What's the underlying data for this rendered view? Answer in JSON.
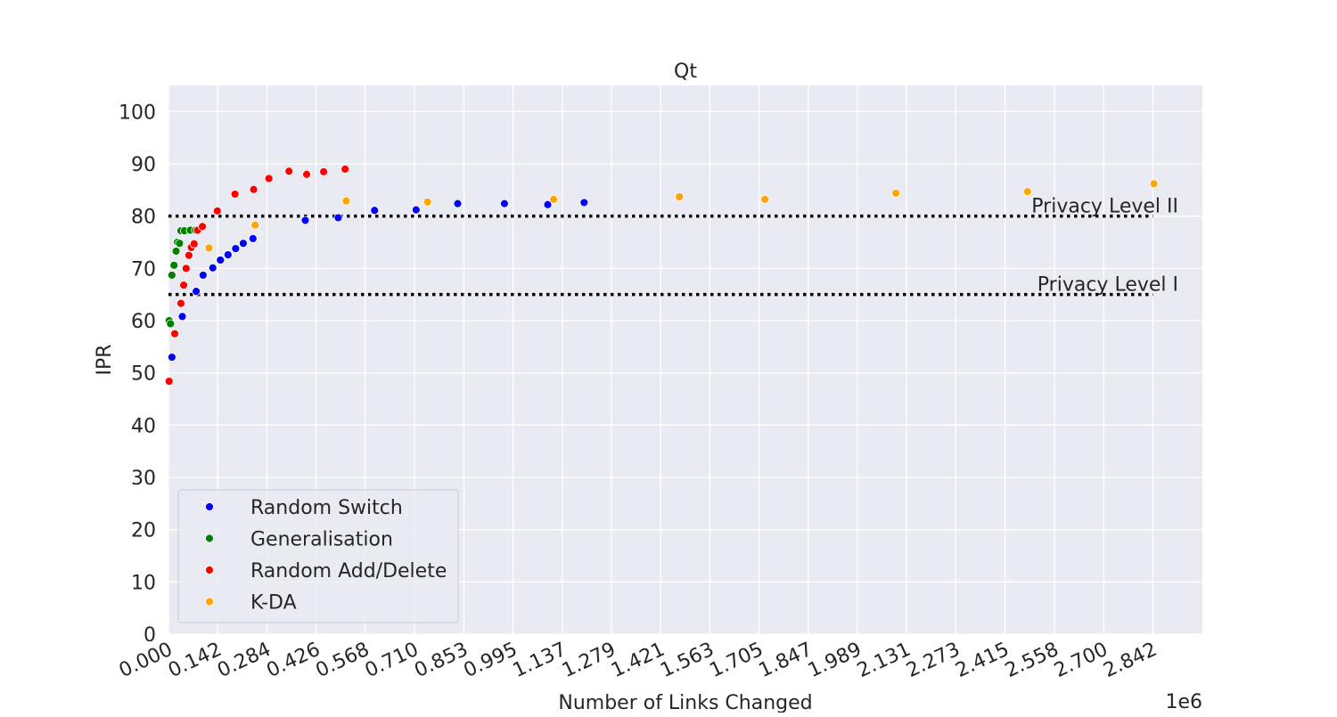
{
  "chart_data": {
    "type": "scatter",
    "title": "Qt",
    "xlabel": "Number of Links Changed",
    "ylabel": "IPR",
    "x_offset_label": "1e6",
    "x_multiplier": 1000000,
    "xlim": [
      0,
      2.985
    ],
    "ylim": [
      0,
      105
    ],
    "x_ticks": [
      "0.000",
      "0.142",
      "0.284",
      "0.426",
      "0.568",
      "0.710",
      "0.853",
      "0.995",
      "1.137",
      "1.279",
      "1.421",
      "1.563",
      "1.705",
      "1.847",
      "1.989",
      "2.131",
      "2.273",
      "2.415",
      "2.558",
      "2.700",
      "2.842"
    ],
    "y_ticks": [
      "0",
      "10",
      "20",
      "30",
      "40",
      "50",
      "60",
      "70",
      "80",
      "90",
      "100"
    ],
    "grid": true,
    "legend_position": "lower-left",
    "background_color": "#eaeaf2",
    "series": [
      {
        "name": "Random Switch",
        "color": "#0000ff",
        "points": [
          [
            0.01,
            53.0
          ],
          [
            0.04,
            60.8
          ],
          [
            0.08,
            65.6
          ],
          [
            0.1,
            68.7
          ],
          [
            0.128,
            70.1
          ],
          [
            0.15,
            71.6
          ],
          [
            0.172,
            72.6
          ],
          [
            0.194,
            73.8
          ],
          [
            0.216,
            74.8
          ],
          [
            0.244,
            75.7
          ],
          [
            0.395,
            79.2
          ],
          [
            0.49,
            79.7
          ],
          [
            0.595,
            81.1
          ],
          [
            0.715,
            81.2
          ],
          [
            0.835,
            82.4
          ],
          [
            0.97,
            82.4
          ],
          [
            1.095,
            82.2
          ],
          [
            1.2,
            82.6
          ]
        ]
      },
      {
        "name": "Generalisation",
        "color": "#008000",
        "points": [
          [
            0.002,
            60.0
          ],
          [
            0.006,
            59.4
          ],
          [
            0.01,
            68.7
          ],
          [
            0.016,
            70.6
          ],
          [
            0.022,
            73.3
          ],
          [
            0.026,
            75.0
          ],
          [
            0.032,
            74.8
          ],
          [
            0.036,
            77.2
          ],
          [
            0.046,
            77.2
          ],
          [
            0.063,
            77.3
          ],
          [
            0.078,
            77.3
          ]
        ]
      },
      {
        "name": "Random Add/Delete",
        "color": "#ff0000",
        "points": [
          [
            0.002,
            48.4
          ],
          [
            0.018,
            57.5
          ],
          [
            0.036,
            63.3
          ],
          [
            0.044,
            66.8
          ],
          [
            0.051,
            70.0
          ],
          [
            0.059,
            72.5
          ],
          [
            0.066,
            74.0
          ],
          [
            0.074,
            74.7
          ],
          [
            0.084,
            77.3
          ],
          [
            0.098,
            78.0
          ],
          [
            0.141,
            81.0
          ],
          [
            0.192,
            84.2
          ],
          [
            0.246,
            85.1
          ],
          [
            0.29,
            87.2
          ],
          [
            0.348,
            88.6
          ],
          [
            0.399,
            88.0
          ],
          [
            0.448,
            88.5
          ],
          [
            0.51,
            89.0
          ]
        ]
      },
      {
        "name": "K-DA",
        "color": "#ffa500",
        "points": [
          [
            0.117,
            73.9
          ],
          [
            0.25,
            78.3
          ],
          [
            0.513,
            82.9
          ],
          [
            0.748,
            82.7
          ],
          [
            1.112,
            83.2
          ],
          [
            1.475,
            83.7
          ],
          [
            1.722,
            83.2
          ],
          [
            2.1,
            84.4
          ],
          [
            2.48,
            84.7
          ],
          [
            2.845,
            86.2
          ]
        ]
      }
    ],
    "reference_lines": [
      {
        "label": "Privacy Level II",
        "y": 80,
        "x_range": [
          0,
          2.842
        ],
        "style": "dotted",
        "color": "#000000"
      },
      {
        "label": "Privacy Level I",
        "y": 65,
        "x_range": [
          0,
          2.842
        ],
        "style": "dotted",
        "color": "#000000"
      }
    ]
  }
}
